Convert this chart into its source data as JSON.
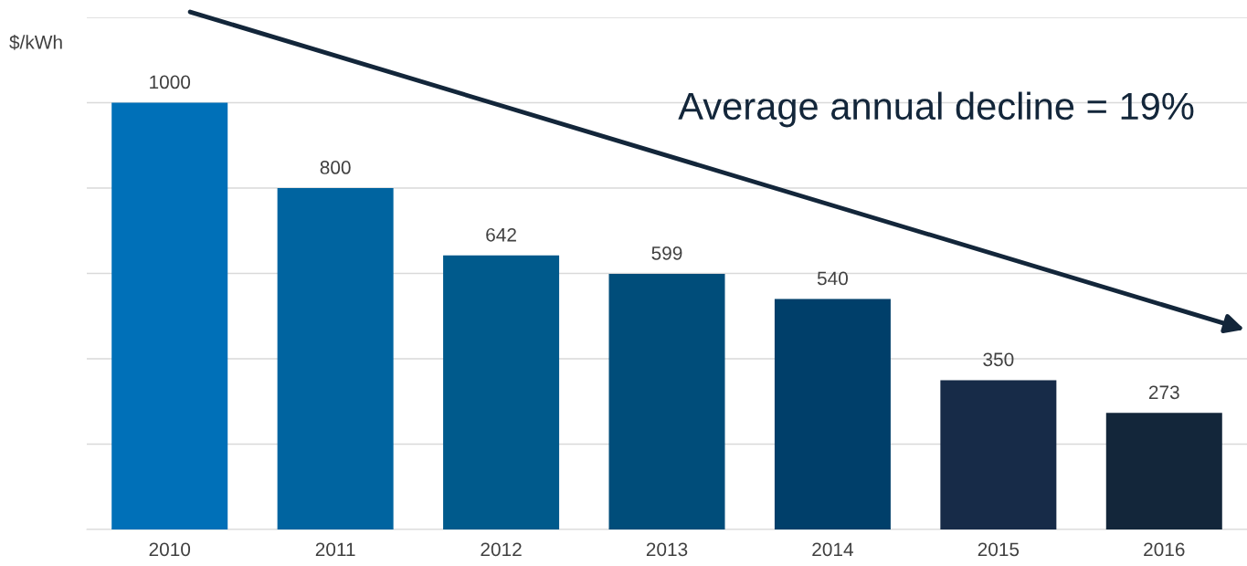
{
  "chart_data": {
    "type": "bar",
    "ylabel": "$/kWh",
    "categories": [
      "2010",
      "2011",
      "2012",
      "2013",
      "2014",
      "2015",
      "2016"
    ],
    "values": [
      1000,
      800,
      642,
      599,
      540,
      350,
      273
    ],
    "colors": [
      "#0070b8",
      "#0064a0",
      "#005a8c",
      "#004d7a",
      "#003f6a",
      "#172b48",
      "#13263a"
    ],
    "data_labels": true,
    "ylim": [
      0,
      1200
    ],
    "yticks": [
      {
        "value": 0,
        "label": null
      },
      {
        "value": 200,
        "label": null
      },
      {
        "value": 400,
        "label": null
      },
      {
        "value": 600,
        "label": null
      },
      {
        "value": 800,
        "label": null
      },
      {
        "value": 1000,
        "label": null
      },
      {
        "value": 1200,
        "label": null
      }
    ],
    "tick_labels": "x",
    "grid": "y",
    "annotations": [
      "Average annual decline = 19%"
    ]
  }
}
